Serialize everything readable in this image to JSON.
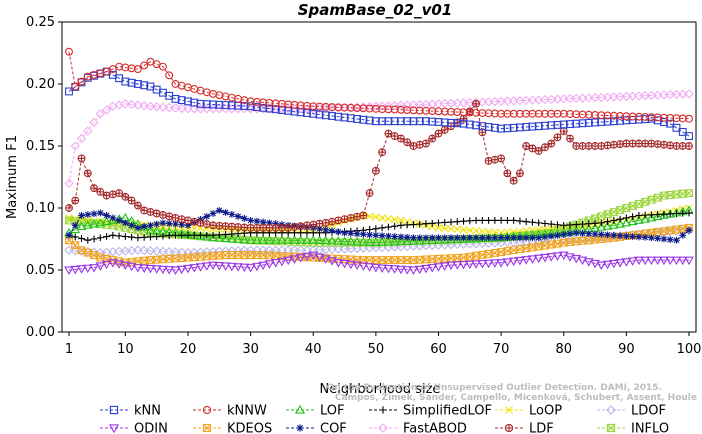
{
  "chart_data": {
    "type": "line",
    "title": "SpamBase_02_v01",
    "xlabel": "Neighborhood size",
    "ylabel": "Maximum F1",
    "xlim": [
      1,
      100
    ],
    "ylim": [
      0,
      0.25
    ],
    "xticks": [
      "1",
      "10",
      "20",
      "30",
      "40",
      "50",
      "60",
      "70",
      "80",
      "90",
      "100"
    ],
    "yticks": [
      "0.00",
      "0.05",
      "0.10",
      "0.15",
      "0.20",
      "0.25"
    ],
    "grid": false,
    "legend_position": "bottom",
    "credit_lines": [
      "Campos, Zimek, Sander, Campello, Micenková, Schubert, Assent, Houle",
      "On the Evaluation of Unsupervised Outlier Detection. DAMI, 2015."
    ],
    "series": [
      {
        "name": "kNN",
        "color": "#2b3fd1",
        "marker": "square",
        "points": [
          [
            1,
            0.194
          ],
          [
            4,
            0.205
          ],
          [
            7,
            0.21
          ],
          [
            10,
            0.202
          ],
          [
            14,
            0.198
          ],
          [
            18,
            0.188
          ],
          [
            22,
            0.184
          ],
          [
            30,
            0.182
          ],
          [
            40,
            0.176
          ],
          [
            50,
            0.17
          ],
          [
            58,
            0.17
          ],
          [
            64,
            0.168
          ],
          [
            70,
            0.164
          ],
          [
            76,
            0.166
          ],
          [
            82,
            0.168
          ],
          [
            88,
            0.17
          ],
          [
            94,
            0.172
          ],
          [
            97,
            0.168
          ],
          [
            100,
            0.158
          ]
        ]
      },
      {
        "name": "kNNW",
        "color": "#d62a2a",
        "marker": "circle",
        "points": [
          [
            1,
            0.226
          ],
          [
            2,
            0.198
          ],
          [
            4,
            0.206
          ],
          [
            7,
            0.21
          ],
          [
            9,
            0.214
          ],
          [
            12,
            0.212
          ],
          [
            14,
            0.218
          ],
          [
            16,
            0.214
          ],
          [
            18,
            0.2
          ],
          [
            24,
            0.192
          ],
          [
            30,
            0.186
          ],
          [
            40,
            0.182
          ],
          [
            50,
            0.18
          ],
          [
            60,
            0.178
          ],
          [
            70,
            0.176
          ],
          [
            80,
            0.176
          ],
          [
            90,
            0.174
          ],
          [
            100,
            0.172
          ]
        ]
      },
      {
        "name": "LOF",
        "color": "#21c21d",
        "marker": "triangle-up",
        "points": [
          [
            1,
            0.08
          ],
          [
            3,
            0.085
          ],
          [
            6,
            0.088
          ],
          [
            10,
            0.092
          ],
          [
            14,
            0.082
          ],
          [
            18,
            0.08
          ],
          [
            24,
            0.076
          ],
          [
            30,
            0.074
          ],
          [
            40,
            0.074
          ],
          [
            50,
            0.072
          ],
          [
            60,
            0.074
          ],
          [
            70,
            0.076
          ],
          [
            80,
            0.08
          ],
          [
            88,
            0.086
          ],
          [
            94,
            0.092
          ],
          [
            100,
            0.098
          ]
        ]
      },
      {
        "name": "SimplifiedLOF",
        "color": "#000000",
        "marker": "plus",
        "points": [
          [
            1,
            0.078
          ],
          [
            4,
            0.074
          ],
          [
            8,
            0.078
          ],
          [
            12,
            0.076
          ],
          [
            18,
            0.078
          ],
          [
            24,
            0.078
          ],
          [
            30,
            0.08
          ],
          [
            36,
            0.08
          ],
          [
            42,
            0.08
          ],
          [
            48,
            0.082
          ],
          [
            54,
            0.086
          ],
          [
            60,
            0.088
          ],
          [
            66,
            0.09
          ],
          [
            72,
            0.09
          ],
          [
            80,
            0.086
          ],
          [
            86,
            0.088
          ],
          [
            92,
            0.094
          ],
          [
            100,
            0.096
          ]
        ]
      },
      {
        "name": "LoOP",
        "color": "#f3e20a",
        "marker": "x",
        "points": [
          [
            1,
            0.092
          ],
          [
            4,
            0.09
          ],
          [
            8,
            0.088
          ],
          [
            14,
            0.086
          ],
          [
            20,
            0.084
          ],
          [
            30,
            0.082
          ],
          [
            40,
            0.082
          ],
          [
            48,
            0.094
          ],
          [
            54,
            0.09
          ],
          [
            60,
            0.084
          ],
          [
            70,
            0.08
          ],
          [
            80,
            0.084
          ],
          [
            90,
            0.09
          ],
          [
            100,
            0.1
          ]
        ]
      },
      {
        "name": "LDOF",
        "color": "#b9b6e8",
        "marker": "diamond",
        "points": [
          [
            1,
            0.066
          ],
          [
            6,
            0.064
          ],
          [
            12,
            0.066
          ],
          [
            20,
            0.064
          ],
          [
            30,
            0.066
          ],
          [
            40,
            0.066
          ],
          [
            50,
            0.068
          ],
          [
            60,
            0.07
          ],
          [
            70,
            0.072
          ],
          [
            80,
            0.074
          ],
          [
            90,
            0.078
          ],
          [
            100,
            0.082
          ]
        ]
      },
      {
        "name": "ODIN",
        "color": "#9b35e8",
        "marker": "triangle-down",
        "points": [
          [
            1,
            0.05
          ],
          [
            5,
            0.052
          ],
          [
            8,
            0.056
          ],
          [
            12,
            0.052
          ],
          [
            18,
            0.05
          ],
          [
            24,
            0.054
          ],
          [
            30,
            0.052
          ],
          [
            36,
            0.058
          ],
          [
            40,
            0.062
          ],
          [
            44,
            0.056
          ],
          [
            50,
            0.052
          ],
          [
            56,
            0.05
          ],
          [
            62,
            0.054
          ],
          [
            70,
            0.056
          ],
          [
            80,
            0.062
          ],
          [
            86,
            0.054
          ],
          [
            92,
            0.058
          ],
          [
            100,
            0.058
          ]
        ]
      },
      {
        "name": "KDEOS",
        "color": "#f0a31f",
        "marker": "square-x",
        "points": [
          [
            1,
            0.074
          ],
          [
            3,
            0.066
          ],
          [
            6,
            0.06
          ],
          [
            10,
            0.056
          ],
          [
            14,
            0.058
          ],
          [
            20,
            0.06
          ],
          [
            26,
            0.062
          ],
          [
            32,
            0.062
          ],
          [
            40,
            0.06
          ],
          [
            48,
            0.058
          ],
          [
            56,
            0.058
          ],
          [
            64,
            0.06
          ],
          [
            72,
            0.066
          ],
          [
            80,
            0.072
          ],
          [
            88,
            0.076
          ],
          [
            94,
            0.08
          ],
          [
            100,
            0.084
          ]
        ]
      },
      {
        "name": "COF",
        "color": "#0b1a8a",
        "marker": "asterisk",
        "points": [
          [
            1,
            0.078
          ],
          [
            3,
            0.094
          ],
          [
            6,
            0.096
          ],
          [
            9,
            0.09
          ],
          [
            12,
            0.084
          ],
          [
            16,
            0.088
          ],
          [
            20,
            0.086
          ],
          [
            25,
            0.098
          ],
          [
            30,
            0.09
          ],
          [
            36,
            0.086
          ],
          [
            40,
            0.084
          ],
          [
            45,
            0.08
          ],
          [
            50,
            0.078
          ],
          [
            56,
            0.076
          ],
          [
            62,
            0.076
          ],
          [
            70,
            0.076
          ],
          [
            76,
            0.076
          ],
          [
            82,
            0.08
          ],
          [
            88,
            0.078
          ],
          [
            94,
            0.076
          ],
          [
            98,
            0.074
          ],
          [
            100,
            0.082
          ]
        ]
      },
      {
        "name": "FastABOD",
        "color": "#f2aaf2",
        "marker": "diamond",
        "points": [
          [
            1,
            0.12
          ],
          [
            2,
            0.15
          ],
          [
            4,
            0.162
          ],
          [
            6,
            0.176
          ],
          [
            8,
            0.182
          ],
          [
            10,
            0.184
          ],
          [
            14,
            0.182
          ],
          [
            20,
            0.18
          ],
          [
            30,
            0.18
          ],
          [
            40,
            0.18
          ],
          [
            50,
            0.182
          ],
          [
            60,
            0.184
          ],
          [
            70,
            0.186
          ],
          [
            80,
            0.188
          ],
          [
            90,
            0.19
          ],
          [
            100,
            0.192
          ]
        ]
      },
      {
        "name": "LDF",
        "color": "#a52a2a",
        "marker": "circle-plus",
        "points": [
          [
            1,
            0.1
          ],
          [
            2,
            0.106
          ],
          [
            3,
            0.14
          ],
          [
            4,
            0.128
          ],
          [
            5,
            0.116
          ],
          [
            7,
            0.11
          ],
          [
            9,
            0.112
          ],
          [
            11,
            0.106
          ],
          [
            13,
            0.098
          ],
          [
            18,
            0.092
          ],
          [
            24,
            0.086
          ],
          [
            30,
            0.084
          ],
          [
            36,
            0.084
          ],
          [
            42,
            0.088
          ],
          [
            48,
            0.094
          ],
          [
            50,
            0.13
          ],
          [
            52,
            0.16
          ],
          [
            54,
            0.156
          ],
          [
            56,
            0.15
          ],
          [
            58,
            0.152
          ],
          [
            60,
            0.16
          ],
          [
            62,
            0.166
          ],
          [
            64,
            0.172
          ],
          [
            66,
            0.184
          ],
          [
            68,
            0.138
          ],
          [
            70,
            0.14
          ],
          [
            71,
            0.128
          ],
          [
            72,
            0.122
          ],
          [
            73,
            0.128
          ],
          [
            74,
            0.15
          ],
          [
            76,
            0.146
          ],
          [
            78,
            0.152
          ],
          [
            80,
            0.162
          ],
          [
            82,
            0.15
          ],
          [
            86,
            0.15
          ],
          [
            90,
            0.152
          ],
          [
            94,
            0.152
          ],
          [
            98,
            0.15
          ],
          [
            100,
            0.15
          ]
        ]
      },
      {
        "name": "INFLO",
        "color": "#9bd63c",
        "marker": "hourglass",
        "points": [
          [
            1,
            0.09
          ],
          [
            4,
            0.088
          ],
          [
            8,
            0.086
          ],
          [
            14,
            0.08
          ],
          [
            20,
            0.078
          ],
          [
            30,
            0.074
          ],
          [
            40,
            0.072
          ],
          [
            50,
            0.072
          ],
          [
            60,
            0.074
          ],
          [
            70,
            0.076
          ],
          [
            78,
            0.08
          ],
          [
            84,
            0.09
          ],
          [
            90,
            0.1
          ],
          [
            96,
            0.11
          ],
          [
            100,
            0.112
          ]
        ]
      }
    ]
  }
}
